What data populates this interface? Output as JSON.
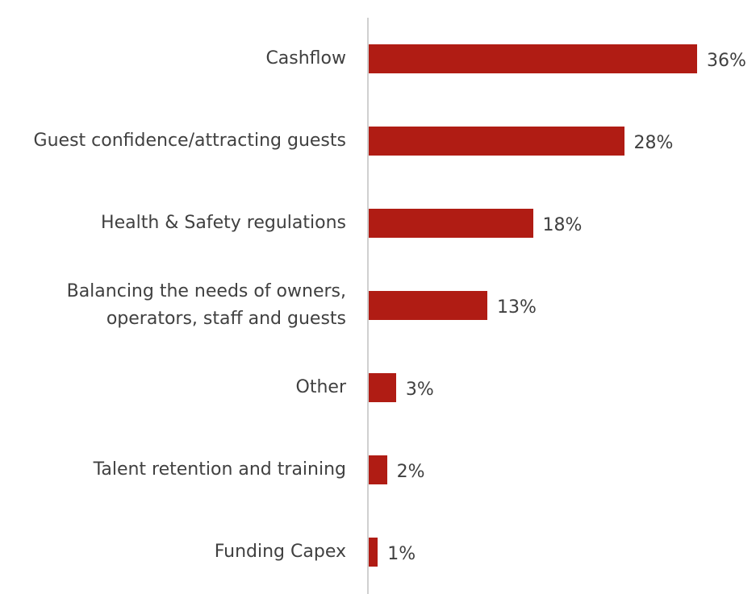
{
  "chart_data": {
    "type": "bar",
    "orientation": "horizontal",
    "categories": [
      "Cashflow",
      "Guest confidence/attracting guests",
      "Health & Safety regulations",
      [
        "Balancing the needs of owners,",
        "operators, staff and guests"
      ],
      "Other",
      "Talent retention and training",
      "Funding Capex"
    ],
    "values": [
      36,
      28,
      18,
      13,
      3,
      2,
      1
    ],
    "value_labels": [
      "36%",
      "28%",
      "18%",
      "13%",
      "3%",
      "2%",
      "1%"
    ],
    "unit": "%",
    "bar_color": "#b01c14",
    "xlim": [
      0,
      36
    ],
    "grid": false,
    "legend": "none"
  }
}
